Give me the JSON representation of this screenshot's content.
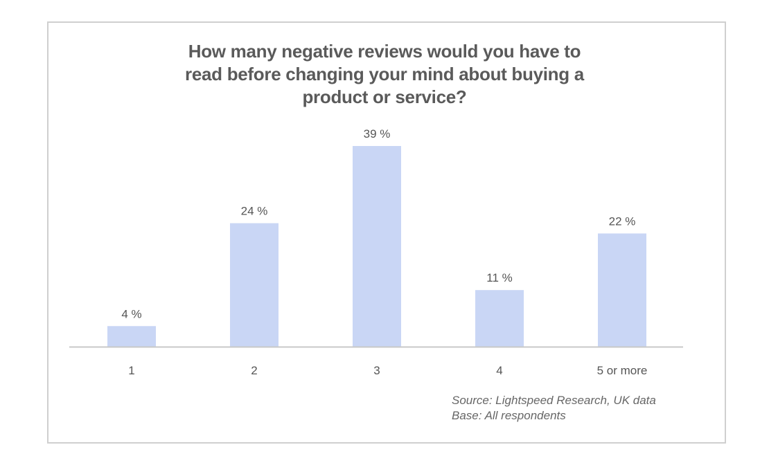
{
  "chart_data": {
    "type": "bar",
    "title": [
      "How many negative reviews would you have to",
      "read before changing your mind about buying a",
      "product or service?"
    ],
    "categories": [
      "1",
      "2",
      "3",
      "4",
      "5 or more"
    ],
    "values": [
      4,
      24,
      39,
      11,
      22
    ],
    "data_labels": [
      "4 %",
      "24 %",
      "39 %",
      "11 %",
      "22 %"
    ],
    "unit": "%",
    "xlabel": "",
    "ylabel": "",
    "ylim": [
      0,
      39
    ],
    "grid": false,
    "bar_color": "#c9d6f5",
    "axis_color": "#c8c8c8"
  },
  "footnote": {
    "source": "Source: Lightspeed  Research,  UK data",
    "base": "Base: All respondents"
  }
}
